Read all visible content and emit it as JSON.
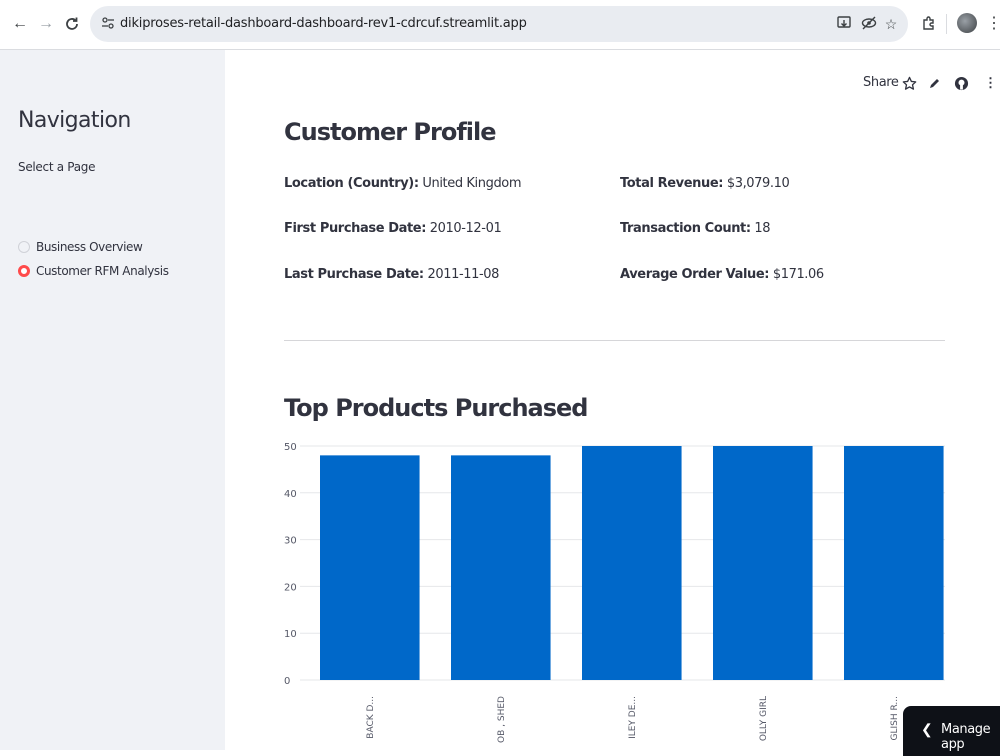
{
  "browser": {
    "url": "dikiproses-retail-dashboard-dashboard-rev1-cdrcuf.streamlit.app",
    "back_glyph": "←",
    "forward_glyph": "→",
    "reload_glyph": "C"
  },
  "sidebar": {
    "title": "Navigation",
    "select_label": "Select a Page",
    "pages": [
      {
        "label": "Business Overview",
        "selected": false
      },
      {
        "label": "Customer RFM Analysis",
        "selected": true
      }
    ]
  },
  "toolbar": {
    "share_label": "Share"
  },
  "profile": {
    "title": "Customer Profile",
    "location": {
      "key": "Location (Country):",
      "value": "United Kingdom"
    },
    "first_purchase": {
      "key": "First Purchase Date:",
      "value": "2010-12-01"
    },
    "last_purchase": {
      "key": "Last Purchase Date:",
      "value": "2011-11-08"
    },
    "total_revenue": {
      "key": "Total Revenue:",
      "value": "$3,079.10"
    },
    "transaction_count": {
      "key": "Transaction Count:",
      "value": "18"
    },
    "avg_order_value": {
      "key": "Average Order Value:",
      "value": "$171.06"
    }
  },
  "products": {
    "title": "Top Products Purchased"
  },
  "chart_data": {
    "type": "bar",
    "categories": [
      "BACK D...",
      "OB , SHED",
      "ILEY DE...",
      "OLLY GIRL",
      "GLISH R..."
    ],
    "values": [
      48,
      48,
      50,
      50,
      50
    ],
    "ylim": [
      0,
      50
    ],
    "yticks": [
      0,
      10,
      20,
      30,
      40,
      50
    ],
    "grid": true,
    "bar_color": "#0068c9"
  },
  "manage_app": {
    "label": "Manage app"
  },
  "colors": {
    "accent": "#ff4b4b",
    "sidebar_bg": "#f0f2f6",
    "bar": "#0068c9"
  }
}
